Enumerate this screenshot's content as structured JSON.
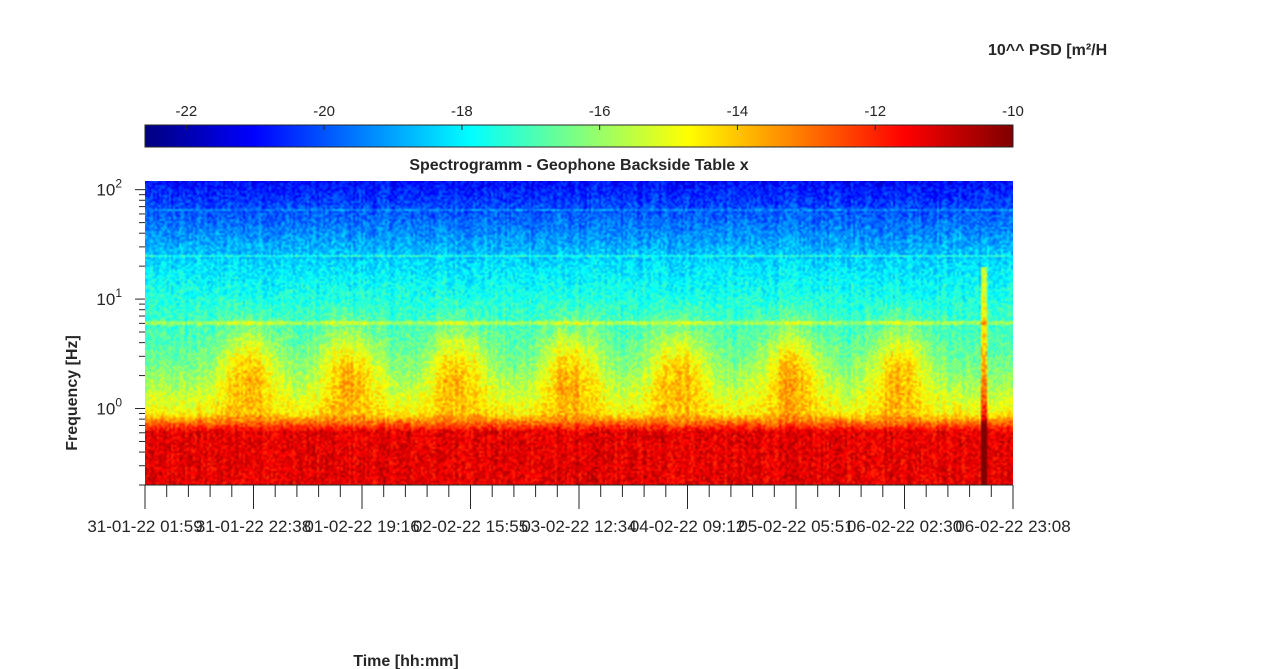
{
  "chart_data": {
    "type": "heatmap",
    "title": "Spectrogramm - Geophone Backside Table x",
    "xlabel": "Time [hh:mm]",
    "ylabel": "Frequency [Hz]",
    "colorbar": {
      "label": "10^^ PSD [m²/H",
      "range": [
        -22.6,
        -10
      ],
      "ticks": [
        "-22",
        "-20",
        "-18",
        "-16",
        "-14",
        "-12",
        "-10"
      ],
      "tick_values": [
        -22,
        -20,
        -18,
        -16,
        -14,
        -12,
        -10
      ],
      "colormap": "jet",
      "placement": "top"
    },
    "y_scale": "log",
    "ylim": [
      0.2,
      120
    ],
    "y_ticks": [
      {
        "base": "10",
        "exp": "0",
        "value": 1
      },
      {
        "base": "10",
        "exp": "1",
        "value": 10
      },
      {
        "base": "10",
        "exp": "2",
        "value": 100
      }
    ],
    "x_ticks": [
      "31-01-22 01:59",
      "31-01-22 22:38",
      "01-02-22 19:16",
      "02-02-22 15:55",
      "03-02-22 12:34",
      "04-02-22 09:12",
      "05-02-22 05:51",
      "06-02-22 02:30",
      "06-02-22 23:08"
    ],
    "xlim": [
      "31-01-22 01:59",
      "06-02-22 23:08"
    ],
    "minor_ticks_per_interval": 4,
    "description_levels": {
      "high_freq_band_100Hz": -20.5,
      "mid_band_10Hz": -17.5,
      "band_1_to_5Hz_daytime": -14.5,
      "band_1_to_5Hz_night": -16.5,
      "low_band_below_0.6Hz": -11.5
    }
  }
}
